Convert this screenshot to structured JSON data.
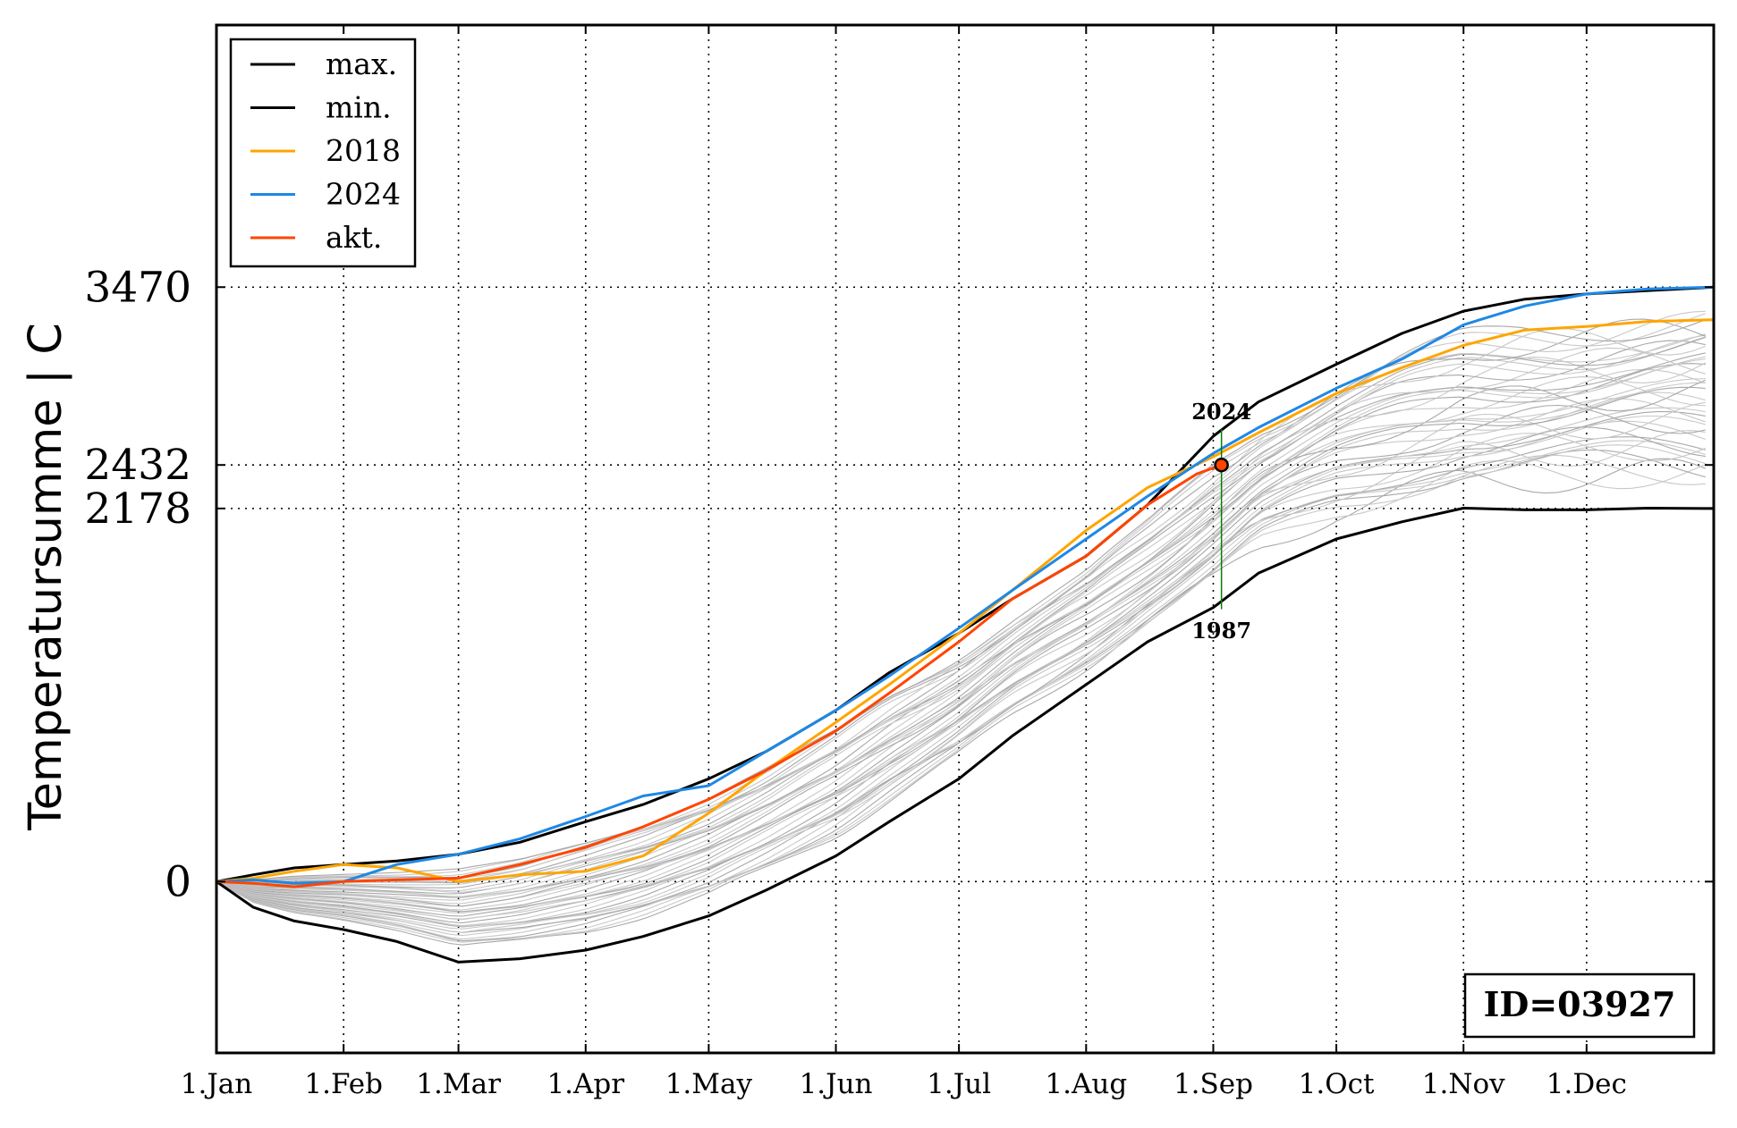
{
  "chart_data": {
    "type": "line",
    "title": "",
    "xlabel": "",
    "ylabel": "Temperatursumme | C",
    "x_ticks": [
      "1.Jan",
      "1.Feb",
      "1.Mar",
      "1.Apr",
      "1.May",
      "1.Jun",
      "1.Jul",
      "1.Aug",
      "1.Sep",
      "1.Oct",
      "1.Nov",
      "1.Dec"
    ],
    "x_tick_days": [
      1,
      32,
      60,
      91,
      121,
      152,
      182,
      213,
      244,
      274,
      305,
      335
    ],
    "xlim": [
      1,
      366
    ],
    "ylim": [
      -1000,
      5000
    ],
    "y_ticks": [
      {
        "value": 0,
        "label": "0"
      },
      {
        "value": 2178,
        "label": "2178"
      },
      {
        "value": 2432,
        "label": "2432"
      },
      {
        "value": 3470,
        "label": "3470"
      }
    ],
    "grid": true,
    "legend_position": "top-left",
    "series": [
      {
        "name": "max.",
        "color": "#000000",
        "points": [
          [
            1,
            0
          ],
          [
            10,
            40
          ],
          [
            20,
            80
          ],
          [
            32,
            100
          ],
          [
            45,
            120
          ],
          [
            60,
            160
          ],
          [
            75,
            230
          ],
          [
            91,
            350
          ],
          [
            105,
            450
          ],
          [
            121,
            600
          ],
          [
            135,
            760
          ],
          [
            152,
            1000
          ],
          [
            165,
            1220
          ],
          [
            182,
            1450
          ],
          [
            195,
            1650
          ],
          [
            213,
            1900
          ],
          [
            228,
            2200
          ],
          [
            244,
            2600
          ],
          [
            255,
            2800
          ],
          [
            274,
            3020
          ],
          [
            290,
            3200
          ],
          [
            305,
            3330
          ],
          [
            320,
            3400
          ],
          [
            335,
            3430
          ],
          [
            350,
            3450
          ],
          [
            366,
            3470
          ]
        ]
      },
      {
        "name": "min.",
        "color": "#000000",
        "points": [
          [
            1,
            0
          ],
          [
            10,
            -150
          ],
          [
            20,
            -230
          ],
          [
            32,
            -280
          ],
          [
            45,
            -350
          ],
          [
            60,
            -470
          ],
          [
            75,
            -450
          ],
          [
            91,
            -400
          ],
          [
            105,
            -320
          ],
          [
            121,
            -200
          ],
          [
            135,
            -50
          ],
          [
            152,
            150
          ],
          [
            165,
            350
          ],
          [
            182,
            600
          ],
          [
            195,
            850
          ],
          [
            213,
            1150
          ],
          [
            228,
            1400
          ],
          [
            244,
            1600
          ],
          [
            255,
            1800
          ],
          [
            274,
            2000
          ],
          [
            290,
            2100
          ],
          [
            305,
            2180
          ],
          [
            320,
            2170
          ],
          [
            335,
            2170
          ],
          [
            350,
            2180
          ],
          [
            366,
            2178
          ]
        ]
      },
      {
        "name": "2018",
        "color": "#ffa500",
        "points": [
          [
            1,
            0
          ],
          [
            10,
            20
          ],
          [
            20,
            60
          ],
          [
            32,
            100
          ],
          [
            45,
            80
          ],
          [
            60,
            0
          ],
          [
            75,
            40
          ],
          [
            91,
            60
          ],
          [
            105,
            150
          ],
          [
            121,
            400
          ],
          [
            135,
            650
          ],
          [
            152,
            930
          ],
          [
            165,
            1150
          ],
          [
            182,
            1450
          ],
          [
            195,
            1700
          ],
          [
            213,
            2050
          ],
          [
            228,
            2300
          ],
          [
            244,
            2480
          ],
          [
            255,
            2620
          ],
          [
            274,
            2850
          ],
          [
            290,
            3000
          ],
          [
            305,
            3130
          ],
          [
            320,
            3220
          ],
          [
            335,
            3240
          ],
          [
            350,
            3270
          ],
          [
            366,
            3280
          ]
        ]
      },
      {
        "name": "2024",
        "color": "#1e88e5",
        "points": [
          [
            1,
            0
          ],
          [
            10,
            10
          ],
          [
            20,
            -10
          ],
          [
            32,
            0
          ],
          [
            45,
            100
          ],
          [
            60,
            160
          ],
          [
            75,
            250
          ],
          [
            91,
            380
          ],
          [
            105,
            500
          ],
          [
            121,
            560
          ],
          [
            135,
            760
          ],
          [
            152,
            1000
          ],
          [
            165,
            1200
          ],
          [
            182,
            1480
          ],
          [
            195,
            1700
          ],
          [
            213,
            2000
          ],
          [
            228,
            2250
          ],
          [
            244,
            2500
          ],
          [
            255,
            2650
          ],
          [
            274,
            2880
          ],
          [
            290,
            3050
          ],
          [
            305,
            3250
          ],
          [
            320,
            3360
          ],
          [
            335,
            3430
          ],
          [
            350,
            3460
          ],
          [
            366,
            3470
          ]
        ]
      },
      {
        "name": "akt.",
        "color": "#ff4500",
        "points": [
          [
            1,
            0
          ],
          [
            10,
            -10
          ],
          [
            20,
            -30
          ],
          [
            32,
            0
          ],
          [
            45,
            10
          ],
          [
            60,
            20
          ],
          [
            75,
            100
          ],
          [
            91,
            200
          ],
          [
            105,
            320
          ],
          [
            121,
            480
          ],
          [
            135,
            650
          ],
          [
            152,
            880
          ],
          [
            165,
            1100
          ],
          [
            182,
            1400
          ],
          [
            195,
            1650
          ],
          [
            213,
            1900
          ],
          [
            228,
            2200
          ],
          [
            240,
            2380
          ],
          [
            246,
            2432
          ]
        ]
      }
    ],
    "marker": {
      "x": 246,
      "y": 2432,
      "face_color": "#ff4500",
      "edge_color": "#000000"
    },
    "annotations": [
      {
        "text": "2024",
        "x": 246,
        "y": 2700
      },
      {
        "text": "1987",
        "x": 246,
        "y": 1420
      }
    ],
    "vertical_range_line": {
      "x": 246,
      "y_from": 1590,
      "y_to": 2640,
      "color": "#008000"
    },
    "id_box": "ID=03927"
  }
}
